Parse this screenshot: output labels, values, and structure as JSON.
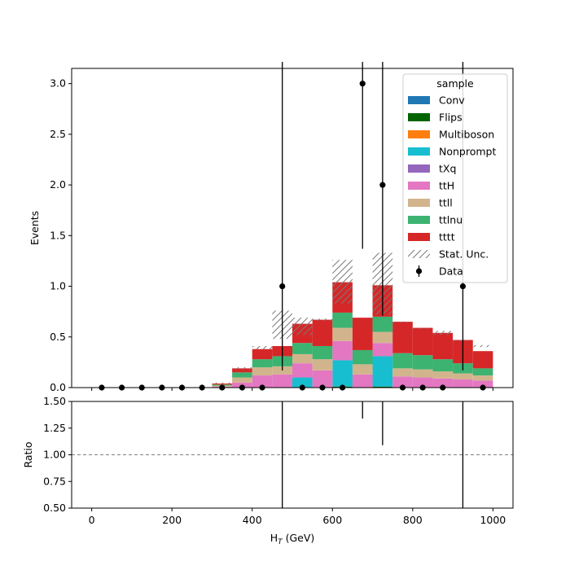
{
  "chart_data": [
    {
      "type": "bar",
      "stacked": true,
      "ylabel": "Events",
      "ylim": [
        0,
        3.15
      ],
      "xlim": [
        -50,
        1050
      ],
      "yticks": [
        0.0,
        0.5,
        1.0,
        1.5,
        2.0,
        2.5,
        3.0
      ],
      "ytick_labels": [
        "0.0",
        "0.5",
        "1.0",
        "1.5",
        "2.0",
        "2.5",
        "3.0"
      ],
      "bin_edges": [
        0,
        50,
        100,
        150,
        200,
        250,
        300,
        350,
        400,
        450,
        500,
        550,
        600,
        650,
        700,
        750,
        800,
        850,
        900,
        950,
        1000
      ],
      "series": [
        {
          "name": "Conv",
          "color": "#1f77b4",
          "values": [
            0,
            0,
            0,
            0,
            0,
            0,
            0,
            0,
            0,
            0,
            0,
            0,
            0,
            0,
            0,
            0,
            0,
            0,
            0,
            0
          ]
        },
        {
          "name": "Flips",
          "color": "#006400",
          "values": [
            0,
            0,
            0,
            0,
            0,
            0,
            0,
            0,
            0,
            0,
            0,
            0,
            0.01,
            0,
            0.01,
            0,
            0,
            0,
            0,
            0
          ]
        },
        {
          "name": "Multiboson",
          "color": "#ff7f0e",
          "values": [
            0,
            0,
            0,
            0,
            0,
            0,
            0,
            0,
            0,
            0,
            0,
            0,
            0,
            0,
            0,
            0,
            0,
            0,
            0,
            0
          ]
        },
        {
          "name": "Nonprompt",
          "color": "#17becf",
          "values": [
            0,
            0,
            0,
            0,
            0,
            0,
            0,
            0,
            0,
            0,
            0.1,
            0,
            0.26,
            0,
            0.3,
            0,
            0,
            0,
            0,
            0
          ]
        },
        {
          "name": "tXq",
          "color": "#9467bd",
          "values": [
            0,
            0,
            0,
            0,
            0,
            0,
            0,
            0,
            0,
            0,
            0,
            0,
            0,
            0,
            0,
            0,
            0,
            0,
            0,
            0
          ]
        },
        {
          "name": "ttH",
          "color": "#e377c2",
          "values": [
            0,
            0,
            0,
            0,
            0,
            0,
            0.01,
            0.05,
            0.12,
            0.13,
            0.14,
            0.17,
            0.19,
            0.13,
            0.13,
            0.11,
            0.1,
            0.09,
            0.08,
            0.07
          ]
        },
        {
          "name": "ttll",
          "color": "#d2b48c",
          "values": [
            0,
            0,
            0,
            0,
            0,
            0,
            0.01,
            0.05,
            0.08,
            0.08,
            0.09,
            0.11,
            0.13,
            0.1,
            0.11,
            0.08,
            0.08,
            0.07,
            0.06,
            0.05
          ]
        },
        {
          "name": "ttlnu",
          "color": "#3cb371",
          "values": [
            0,
            0,
            0,
            0,
            0,
            0,
            0.01,
            0.05,
            0.08,
            0.1,
            0.11,
            0.13,
            0.15,
            0.14,
            0.15,
            0.15,
            0.14,
            0.12,
            0.1,
            0.07
          ]
        },
        {
          "name": "tttt",
          "color": "#d62728",
          "values": [
            0,
            0,
            0,
            0,
            0,
            0,
            0.01,
            0.04,
            0.1,
            0.1,
            0.19,
            0.26,
            0.3,
            0.32,
            0.31,
            0.31,
            0.27,
            0.26,
            0.23,
            0.17
          ]
        }
      ],
      "stat_unc": {
        "name": "Stat. Unc.",
        "down": [
          0,
          0,
          0,
          0,
          0,
          0,
          0.04,
          0.18,
          0.38,
          0.48,
          0.52,
          0.66,
          0.83,
          0.7,
          0.72,
          0.64,
          0.58,
          0.52,
          0.46,
          0.4
        ],
        "up": [
          0,
          0,
          0,
          0,
          0,
          0,
          0.05,
          0.2,
          0.41,
          0.76,
          0.69,
          0.68,
          1.26,
          0.7,
          1.33,
          0.65,
          0.59,
          0.56,
          0.47,
          0.42
        ]
      },
      "data": {
        "name": "Data",
        "x": [
          25,
          75,
          125,
          175,
          225,
          275,
          325,
          375,
          425,
          475,
          525,
          575,
          625,
          675,
          725,
          775,
          825,
          875,
          925,
          975
        ],
        "y": [
          0,
          0,
          0,
          0,
          0,
          0,
          0,
          0,
          0,
          1,
          0,
          0,
          0,
          3,
          2,
          0,
          0,
          0,
          1,
          0
        ],
        "err_low": [
          0,
          0,
          0,
          0,
          0,
          0,
          0,
          0,
          0,
          0.83,
          0,
          0,
          0,
          1.63,
          1.29,
          0,
          0,
          0,
          0.83,
          0
        ],
        "err_high": [
          0,
          0,
          0,
          0,
          0,
          0,
          0,
          0,
          0,
          2.3,
          0,
          0,
          0,
          2.92,
          2.64,
          0,
          0,
          0,
          2.3,
          0
        ]
      },
      "legend": {
        "title": "sample",
        "placement": "upper right"
      }
    },
    {
      "type": "line",
      "xlabel": "H$_T$ (GeV)",
      "xlabel_main": "H",
      "xlabel_sub": "T",
      "xlabel_unit": " (GeV)",
      "ylabel": "Ratio",
      "ylim": [
        0.5,
        1.5
      ],
      "yticks": [
        0.5,
        0.75,
        1.0,
        1.25,
        1.5
      ],
      "ytick_labels": [
        "0.50",
        "0.75",
        "1.00",
        "1.25",
        "1.50"
      ],
      "xticks": [
        0,
        200,
        400,
        600,
        800,
        1000
      ],
      "xtick_labels": [
        "0",
        "200",
        "400",
        "600",
        "800",
        "1000"
      ],
      "reference_line": 1.0,
      "error_bars": [
        {
          "x": 475,
          "low": 0.5,
          "high": 1.5
        },
        {
          "x": 675,
          "low": 1.34,
          "high": 1.5
        },
        {
          "x": 725,
          "low": 1.09,
          "high": 1.5
        },
        {
          "x": 925,
          "low": 0.5,
          "high": 1.5
        }
      ]
    }
  ]
}
